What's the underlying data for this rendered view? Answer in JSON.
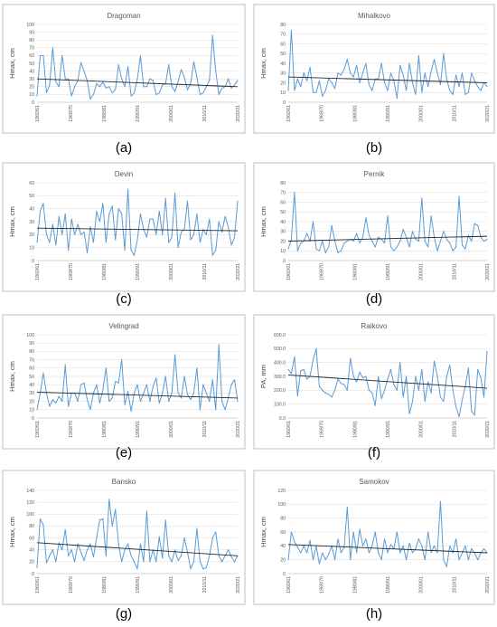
{
  "colors": {
    "series": "#5b9bd5",
    "trend": "#262626",
    "grid": "#d9d9d9",
    "frame": "#bfbfbf",
    "tick": "#595959"
  },
  "chart_data": [
    {
      "type": "line",
      "title": "Dragoman",
      "ylabel": "Hmax, cm",
      "caption": "(a)",
      "ylim": [
        0,
        100
      ],
      "yticks": [
        0,
        10,
        20,
        30,
        40,
        50,
        60,
        70,
        80,
        90,
        100
      ],
      "x_tick_labels": [
        "1960/61",
        "1969/70",
        "1980/81",
        "1990/91",
        "2000/01",
        "2010/11",
        "2020/21"
      ],
      "trend": [
        30,
        20
      ],
      "values": [
        8,
        60,
        60,
        12,
        22,
        70,
        26,
        20,
        60,
        30,
        30,
        8,
        20,
        28,
        51,
        40,
        28,
        4,
        10,
        24,
        20,
        26,
        18,
        20,
        12,
        16,
        48,
        30,
        20,
        46,
        8,
        12,
        30,
        60,
        20,
        20,
        30,
        28,
        10,
        12,
        22,
        24,
        48,
        20,
        14,
        26,
        42,
        32,
        16,
        24,
        52,
        32,
        10,
        12,
        20,
        28,
        86,
        40,
        10,
        18,
        20,
        30,
        18,
        22,
        28
      ]
    },
    {
      "type": "line",
      "title": "Mihalkovo",
      "ylabel": "Hmax, cm",
      "caption": "(b)",
      "ylim": [
        0,
        80
      ],
      "yticks": [
        0,
        10,
        20,
        30,
        40,
        50,
        60,
        70,
        80
      ],
      "x_tick_labels": [
        "1960/61",
        "1969/70",
        "1980/81",
        "1990/91",
        "2000/01",
        "2010/11",
        "2020/21"
      ],
      "trend": [
        26,
        20
      ],
      "values": [
        12,
        74,
        12,
        24,
        16,
        30,
        22,
        36,
        10,
        10,
        22,
        6,
        12,
        24,
        20,
        14,
        30,
        28,
        34,
        44,
        30,
        26,
        38,
        20,
        30,
        40,
        18,
        12,
        24,
        24,
        40,
        20,
        12,
        30,
        22,
        4,
        38,
        28,
        12,
        40,
        20,
        8,
        48,
        10,
        30,
        16,
        32,
        44,
        30,
        18,
        50,
        24,
        12,
        8,
        28,
        16,
        30,
        8,
        10,
        30,
        22,
        16,
        12,
        20,
        16
      ]
    },
    {
      "type": "line",
      "title": "Devin",
      "ylabel": "Hmax, cm",
      "caption": "(c)",
      "ylim": [
        0,
        60
      ],
      "yticks": [
        0,
        10,
        20,
        30,
        40,
        50,
        60
      ],
      "x_tick_labels": [
        "1960/61",
        "1969/70",
        "1980/81",
        "1990/91",
        "2000/01",
        "2010/11",
        "2020/21"
      ],
      "trend": [
        25,
        23
      ],
      "values": [
        14,
        38,
        44,
        20,
        14,
        28,
        12,
        34,
        20,
        36,
        8,
        32,
        20,
        28,
        20,
        22,
        6,
        26,
        14,
        38,
        30,
        44,
        14,
        36,
        42,
        16,
        40,
        36,
        8,
        55,
        8,
        4,
        16,
        36,
        24,
        18,
        32,
        32,
        20,
        38,
        20,
        48,
        14,
        18,
        52,
        10,
        22,
        24,
        46,
        16,
        20,
        36,
        14,
        24,
        20,
        32,
        4,
        8,
        30,
        22,
        34,
        26,
        12,
        18,
        46
      ]
    },
    {
      "type": "line",
      "title": "Pernik",
      "ylabel": "Hmax, cm",
      "caption": "(d)",
      "ylim": [
        0,
        80
      ],
      "yticks": [
        0,
        10,
        20,
        30,
        40,
        50,
        60,
        70,
        80
      ],
      "x_tick_labels": [
        "1960/61",
        "1969/70",
        "1980/81",
        "1990/91",
        "2000/01",
        "2010/11",
        "2020/21"
      ],
      "trend": [
        20,
        25
      ],
      "values": [
        12,
        22,
        70,
        10,
        18,
        20,
        28,
        20,
        40,
        12,
        10,
        20,
        8,
        14,
        36,
        20,
        8,
        10,
        18,
        20,
        22,
        20,
        28,
        18,
        24,
        44,
        26,
        20,
        14,
        24,
        22,
        18,
        46,
        14,
        10,
        14,
        20,
        32,
        24,
        14,
        30,
        22,
        20,
        64,
        20,
        14,
        46,
        24,
        10,
        20,
        30,
        22,
        18,
        10,
        14,
        66,
        16,
        12,
        26,
        20,
        38,
        36,
        24,
        20,
        22
      ]
    },
    {
      "type": "line",
      "title": "Velingrad",
      "ylabel": "Hmax, cm",
      "caption": "(e)",
      "ylim": [
        0,
        100
      ],
      "yticks": [
        0,
        10,
        20,
        30,
        40,
        50,
        60,
        70,
        80,
        90,
        100
      ],
      "x_tick_labels": [
        "1960/61",
        "1969/70",
        "1980/81",
        "1990/91",
        "2000/01",
        "2010/11",
        "2020/21"
      ],
      "trend": [
        31,
        24
      ],
      "values": [
        10,
        30,
        54,
        30,
        14,
        22,
        18,
        26,
        20,
        64,
        14,
        30,
        30,
        20,
        40,
        42,
        22,
        10,
        30,
        40,
        18,
        34,
        60,
        20,
        24,
        44,
        42,
        70,
        16,
        32,
        8,
        30,
        40,
        20,
        30,
        40,
        20,
        38,
        48,
        18,
        30,
        50,
        20,
        30,
        76,
        30,
        24,
        50,
        28,
        22,
        30,
        60,
        10,
        40,
        30,
        20,
        46,
        10,
        88,
        20,
        10,
        24,
        40,
        46,
        20
      ]
    },
    {
      "type": "line",
      "title": "Raikovo",
      "ylabel": "PA, mm",
      "caption": "(f)",
      "ylim": [
        0,
        600
      ],
      "yticks": [
        0,
        100,
        200,
        300,
        400,
        500,
        600
      ],
      "ytick_labels": [
        "0.0",
        "100.0",
        "200.0",
        "300.0",
        "400.0",
        "500.0",
        "600.0"
      ],
      "x_tick_labels": [
        "1960/61",
        "1969/70",
        "1980/81",
        "1990/91",
        "2000/01",
        "2010/11",
        "2020/21"
      ],
      "trend": [
        310,
        215
      ],
      "values": [
        350,
        320,
        440,
        160,
        340,
        350,
        280,
        300,
        420,
        500,
        230,
        200,
        180,
        170,
        150,
        200,
        280,
        250,
        240,
        200,
        430,
        300,
        260,
        330,
        290,
        300,
        200,
        180,
        90,
        300,
        140,
        200,
        280,
        350,
        240,
        200,
        400,
        150,
        300,
        30,
        120,
        300,
        200,
        350,
        120,
        260,
        180,
        410,
        300,
        150,
        120,
        300,
        380,
        200,
        80,
        10,
        130,
        230,
        360,
        50,
        20,
        350,
        290,
        150,
        480
      ]
    },
    {
      "type": "line",
      "title": "Bansko",
      "ylabel": "Hmax, cm",
      "caption": "(g)",
      "ylim": [
        0,
        140
      ],
      "yticks": [
        0,
        20,
        40,
        60,
        80,
        100,
        120,
        140
      ],
      "x_tick_labels": [
        "1960/61",
        "1969/70",
        "1980/81",
        "1990/91",
        "2000/01",
        "2010/11",
        "2020/21"
      ],
      "trend": [
        52,
        30
      ],
      "values": [
        10,
        92,
        82,
        18,
        30,
        40,
        20,
        52,
        40,
        74,
        30,
        40,
        20,
        50,
        36,
        22,
        40,
        50,
        28,
        60,
        90,
        92,
        30,
        125,
        80,
        108,
        50,
        20,
        40,
        50,
        30,
        20,
        8,
        50,
        20,
        105,
        20,
        40,
        20,
        62,
        26,
        90,
        30,
        20,
        40,
        22,
        30,
        60,
        36,
        8,
        20,
        76,
        20,
        8,
        10,
        30,
        60,
        70,
        30,
        20,
        30,
        40,
        28,
        20,
        30
      ]
    },
    {
      "type": "line",
      "title": "Samokov",
      "ylabel": "Hmax, cm",
      "caption": "(h)",
      "ylim": [
        0,
        120
      ],
      "yticks": [
        0,
        20,
        40,
        60,
        80,
        100,
        120
      ],
      "x_tick_labels": [
        "1960/61",
        "1969/70",
        "1980/81",
        "1990/91",
        "2000/01",
        "2010/11",
        "2020/21"
      ],
      "trend": [
        42,
        30
      ],
      "values": [
        20,
        60,
        46,
        38,
        30,
        40,
        30,
        48,
        20,
        40,
        14,
        30,
        20,
        28,
        40,
        20,
        50,
        30,
        38,
        96,
        20,
        60,
        30,
        64,
        40,
        50,
        30,
        40,
        60,
        30,
        20,
        50,
        30,
        42,
        36,
        60,
        30,
        40,
        20,
        44,
        30,
        36,
        50,
        40,
        20,
        60,
        30,
        40,
        30,
        104,
        20,
        10,
        40,
        30,
        50,
        20,
        30,
        40,
        20,
        36,
        30,
        20,
        30,
        36,
        30
      ]
    }
  ]
}
